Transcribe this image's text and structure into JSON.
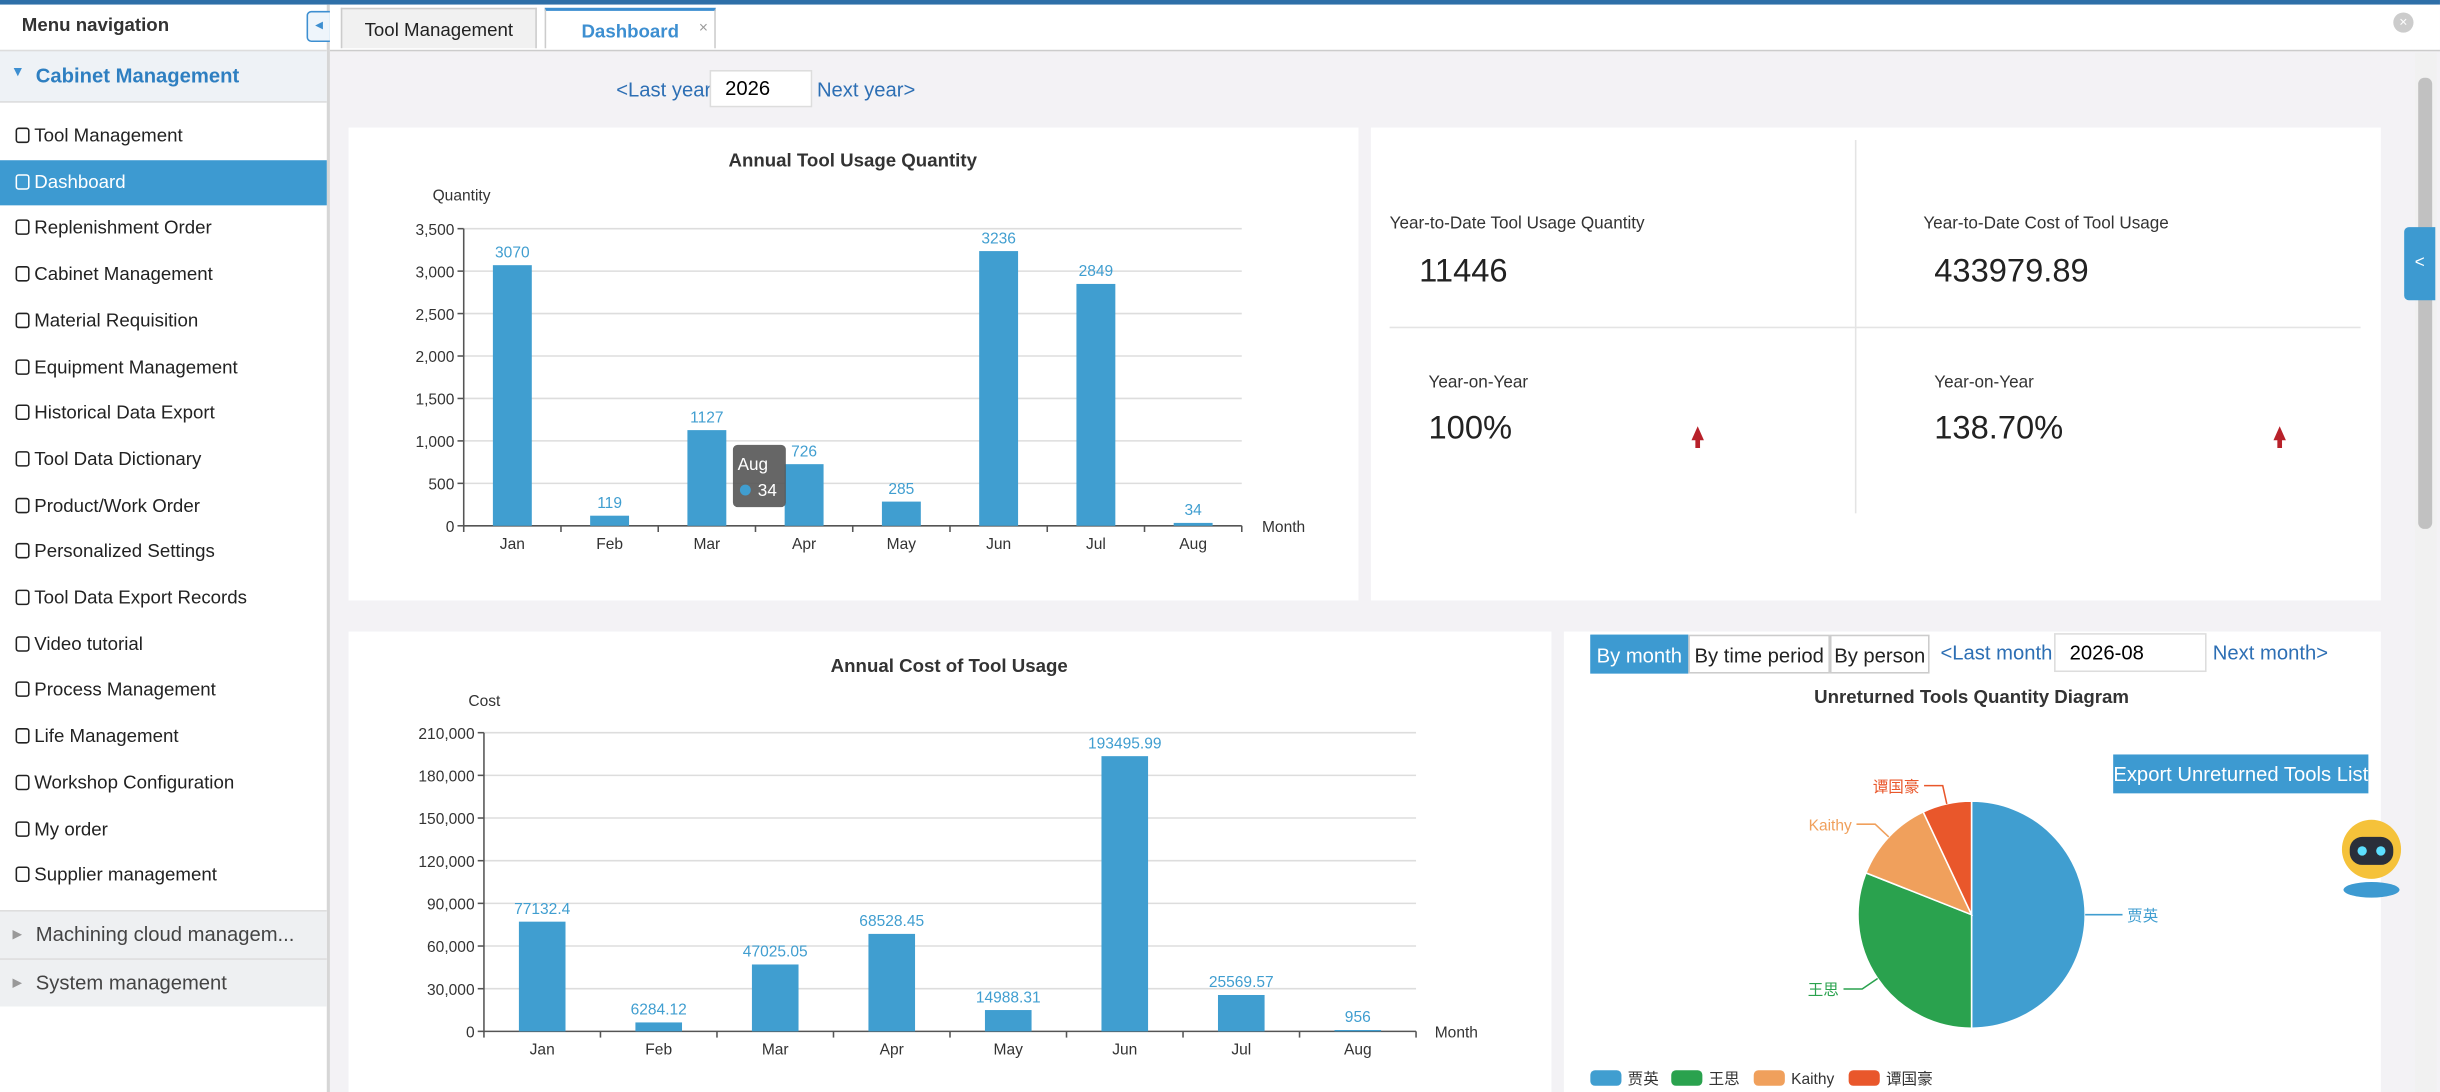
{
  "sidebar": {
    "header": "Menu navigation",
    "group": "Cabinet Management",
    "items": [
      "Tool Management",
      "Dashboard",
      "Replenishment Order",
      "Cabinet Management",
      "Material Requisition",
      "Equipment Management",
      "Historical Data Export",
      "Tool Data Dictionary",
      "Product/Work Order",
      "Personalized Settings",
      "Tool Data Export Records",
      "Video tutorial",
      "Process Management",
      "Life Management",
      "Workshop Configuration",
      "My order",
      "Supplier management"
    ],
    "active_item": 1,
    "collapsed_groups": [
      "Machining cloud managem...",
      "System management"
    ]
  },
  "tabs": [
    "Tool Management",
    "Dashboard"
  ],
  "active_tab": 1,
  "year_nav": {
    "prev": "<Last year",
    "year": "2026",
    "next": "Next year>"
  },
  "kpis": [
    {
      "label": "Year-to-Date Tool Usage Quantity",
      "value": "11446"
    },
    {
      "label": "Year-to-Date Cost of Tool Usage",
      "value": "433979.89"
    },
    {
      "label": "Year-on-Year",
      "value": "100%"
    },
    {
      "label": "Year-on-Year",
      "value": "138.70%"
    }
  ],
  "pie_controls": {
    "buttons": [
      "By month",
      "By time period",
      "By person"
    ],
    "active_button": 0,
    "prev": "<Last month",
    "month": "2026-08",
    "next": "Next month>",
    "export": "Export Unreturned Tools List"
  },
  "chart_data": [
    {
      "type": "bar",
      "title": "Annual Tool Usage Quantity",
      "y_label": "Quantity",
      "x_label": "Month",
      "categories": [
        "Jan",
        "Feb",
        "Mar",
        "Apr",
        "May",
        "Jun",
        "Jul",
        "Aug"
      ],
      "values": [
        3070,
        119,
        1127,
        726,
        285,
        3236,
        2849,
        34
      ],
      "color": "#409ed0",
      "ylim": [
        0,
        3500
      ],
      "yticks": [
        0,
        500,
        {
          "value": 1000,
          "label": "1,000"
        },
        {
          "value": 1500,
          "label": "1,500"
        },
        {
          "value": 2000,
          "label": "2,000"
        },
        {
          "value": 2500,
          "label": "2,500"
        },
        {
          "value": 3000,
          "label": "3,000"
        },
        {
          "value": 3500,
          "label": "3,500"
        }
      ],
      "grid": true,
      "tooltip": {
        "label": "Aug",
        "value": 34
      }
    },
    {
      "type": "bar",
      "title": "Annual Cost of Tool Usage",
      "y_label": "Cost",
      "x_label": "Month",
      "categories": [
        "Jan",
        "Feb",
        "Mar",
        "Apr",
        "May",
        "Jun",
        "Jul",
        "Aug"
      ],
      "values": [
        77132.4,
        6284.12,
        47025.05,
        68528.45,
        14988.31,
        193495.99,
        25569.57,
        956
      ],
      "color": "#409ed0",
      "ylim": [
        0,
        210000
      ],
      "yticks": [
        0,
        {
          "value": 30000,
          "label": "30,000"
        },
        {
          "value": 60000,
          "label": "60,000"
        },
        {
          "value": 90000,
          "label": "90,000"
        },
        {
          "value": 120000,
          "label": "120,000"
        },
        {
          "value": 150000,
          "label": "150,000"
        },
        {
          "value": 180000,
          "label": "180,000"
        },
        {
          "value": 210000,
          "label": "210,000"
        }
      ],
      "grid": true
    },
    {
      "type": "pie",
      "title": "Unreturned Tools Quantity Diagram",
      "categories": [
        "贾英",
        "王思",
        "Kaithy",
        "谭国豪"
      ],
      "values": [
        50,
        31,
        12,
        7
      ],
      "colors": [
        "#409ed0",
        "#2aa24e",
        "#f0a05c",
        "#e9572b"
      ]
    }
  ]
}
